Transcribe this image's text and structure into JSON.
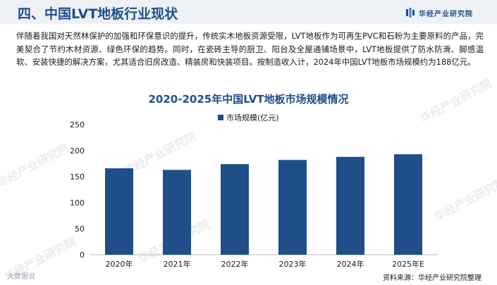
{
  "header": {
    "title": "四、中国LVT地板行业现状",
    "brand": "华经产业研究院",
    "brand_icon": "brand-logo-icon"
  },
  "paragraph": "伴随着我国对天然林保护的加强和环保意识的提升，传统实木地板资源受限，LVT地板作为可再生PVC和石粉为主要原料的产品，完美契合了节约木材资源、绿色环保的趋势。同时，在瓷砖主导的厨卫、阳台及全屋通铺场景中，LVT地板提供了防水防滑、脚感温软、安装快捷的解决方案，尤其适合旧房改造、精装房和快装项目。按制造收入计，2024年中国LVT地板市场规模约为188亿元。",
  "watermark_text": "华经产业研究院",
  "corner_logo_text": "大数据说",
  "source": "资料来源：华经产业研究院整理",
  "colors": {
    "accent": "#1f4e89",
    "bar": "#1f4e89",
    "header_bg": "#eef1f6"
  },
  "chart_data": {
    "type": "bar",
    "title": "2020-2025年中国LVT地板市场规模情况",
    "categories": [
      "2020年",
      "2021年",
      "2022年",
      "2023年",
      "2024年",
      "2025年E"
    ],
    "series": [
      {
        "name": "市场规模(亿元)",
        "values": [
          166,
          163,
          174,
          182,
          188,
          193
        ]
      }
    ],
    "y_ticks": [
      "0",
      "50",
      "100",
      "150",
      "200",
      "250"
    ],
    "ylim": [
      0,
      250
    ],
    "grid": false,
    "legend_position": "top-left"
  }
}
